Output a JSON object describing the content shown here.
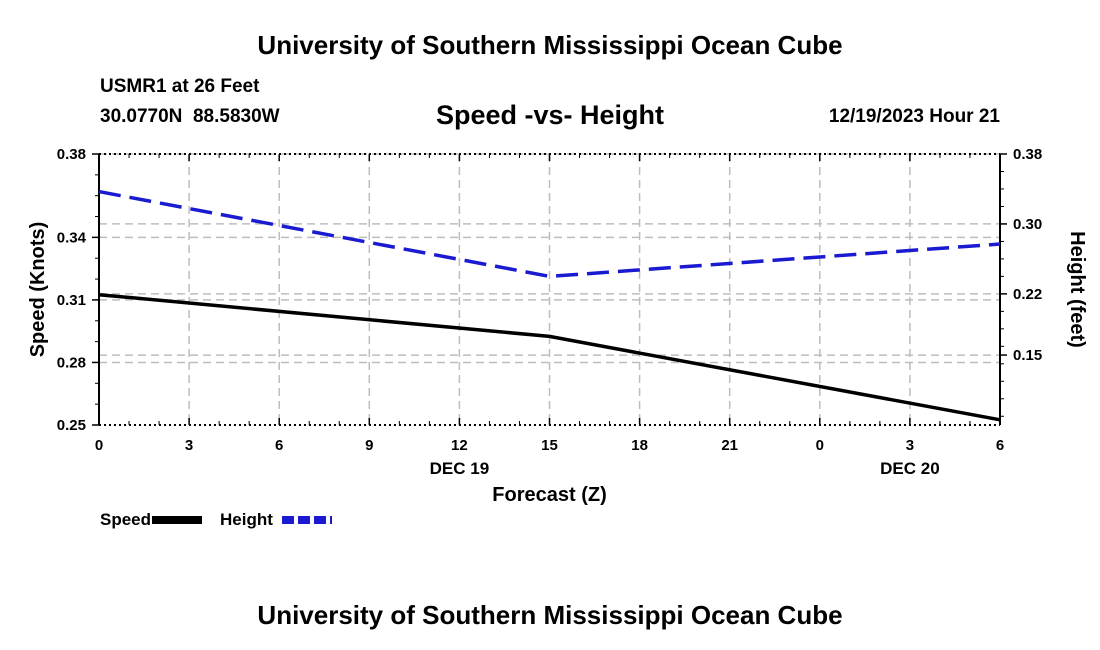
{
  "header": {
    "title": "University of Southern Mississippi Ocean Cube",
    "station": "USMR1 at 26 Feet",
    "coords": "30.0770N  88.5830W",
    "subtitle": "Speed -vs- Height",
    "datetime": "12/19/2023 Hour 21"
  },
  "footer": {
    "title": "University of Southern Mississippi Ocean Cube"
  },
  "colors": {
    "speed": "#000000",
    "height": "#1a1ad0",
    "grid": "#bdbdbd"
  },
  "chart_data": {
    "type": "line",
    "title": "Speed -vs- Height",
    "xlabel": "Forecast (Z)",
    "ylabel": "Speed (Knots)",
    "y2label": "Height (feet)",
    "x_ticks": [
      "0",
      "3",
      "6",
      "9",
      "12",
      "15",
      "18",
      "21",
      "0",
      "3",
      "6"
    ],
    "x_hours": [
      0,
      3,
      6,
      9,
      12,
      15,
      18,
      21,
      24,
      27,
      30
    ],
    "date_labels": [
      {
        "label": "DEC 19",
        "hour": 12
      },
      {
        "label": "DEC 20",
        "hour": 27
      }
    ],
    "xlim": [
      0,
      30
    ],
    "ylim": [
      0.25,
      0.38
    ],
    "y_ticks": [
      0.25,
      0.28,
      0.31,
      0.34,
      0.38
    ],
    "y_tick_labels": [
      "0.25",
      "0.28",
      "0.31",
      "0.34",
      "0.38"
    ],
    "y2lim": [
      0.07,
      0.38
    ],
    "y2_ticks": [
      0.15,
      0.22,
      0.3,
      0.38
    ],
    "y2_tick_labels": [
      "0.15",
      "0.22",
      "0.30",
      "0.38"
    ],
    "series": [
      {
        "name": "Speed",
        "axis": "left",
        "style": "solid",
        "x": [
          0,
          15,
          30
        ],
        "values": [
          0.3125,
          0.2925,
          0.2525
        ]
      },
      {
        "name": "Height",
        "axis": "right",
        "style": "dashed",
        "x": [
          0,
          15,
          30
        ],
        "values": [
          0.337,
          0.24,
          0.277
        ]
      }
    ],
    "legend": {
      "placement": "bottom-left",
      "entries": [
        "Speed",
        "Height"
      ]
    },
    "grid": true
  }
}
